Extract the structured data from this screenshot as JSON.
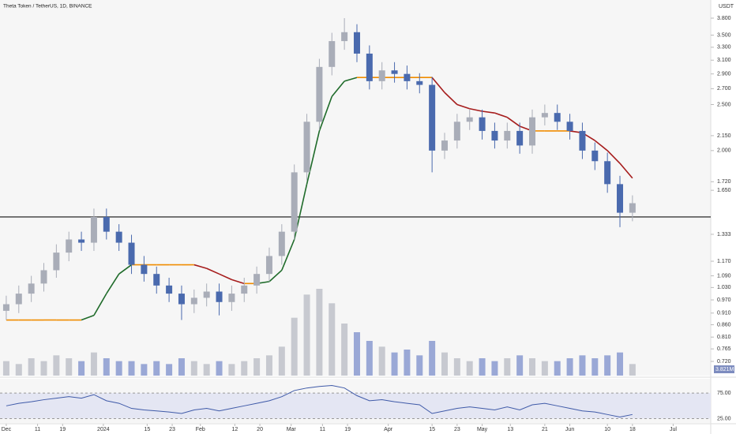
{
  "chart_data": {
    "type": "candlestick",
    "title": "Theta Token / TetherUS, 1D, BINANCE",
    "currency": "USDT",
    "log_scale": true,
    "up_color": "#a9adb8",
    "down_color": "#4a6aae",
    "ma_name": null,
    "x": [
      0,
      4,
      8,
      12,
      16,
      20,
      24,
      28,
      32,
      36,
      40,
      44,
      48,
      52,
      56,
      60,
      64,
      68,
      72,
      76,
      80,
      84,
      88,
      92,
      96,
      100,
      104,
      108,
      112,
      116,
      120,
      124,
      128,
      132,
      136,
      140,
      144,
      148,
      152,
      156,
      160,
      164,
      168,
      172,
      176,
      180,
      184,
      188,
      192,
      196,
      200
    ],
    "open": [
      0.92,
      0.95,
      1.0,
      1.05,
      1.12,
      1.22,
      1.3,
      1.28,
      1.45,
      1.35,
      1.28,
      1.15,
      1.1,
      1.04,
      1.0,
      0.95,
      0.98,
      1.01,
      0.96,
      1.0,
      1.04,
      1.1,
      1.2,
      1.35,
      1.8,
      2.3,
      3.0,
      3.4,
      3.55,
      3.2,
      2.8,
      2.95,
      2.9,
      2.8,
      2.75,
      2.0,
      2.1,
      2.3,
      2.35,
      2.2,
      2.1,
      2.2,
      2.05,
      2.35,
      2.4,
      2.3,
      2.2,
      2.0,
      1.9,
      1.7,
      1.48
    ],
    "high": [
      0.99,
      1.04,
      1.09,
      1.16,
      1.27,
      1.35,
      1.35,
      1.51,
      1.51,
      1.4,
      1.33,
      1.2,
      1.14,
      1.08,
      1.04,
      1.02,
      1.05,
      1.05,
      1.04,
      1.08,
      1.14,
      1.25,
      1.4,
      1.87,
      2.39,
      3.12,
      3.54,
      3.8,
      3.69,
      3.33,
      3.07,
      3.07,
      3.02,
      2.91,
      2.86,
      2.18,
      2.39,
      2.44,
      2.44,
      2.29,
      2.29,
      2.29,
      2.44,
      2.5,
      2.5,
      2.39,
      2.29,
      2.08,
      1.98,
      1.77,
      1.61
    ],
    "low": [
      0.88,
      0.91,
      0.96,
      1.01,
      1.08,
      1.17,
      1.23,
      1.23,
      1.3,
      1.23,
      1.1,
      1.06,
      1.0,
      0.96,
      0.88,
      0.91,
      0.94,
      0.9,
      0.92,
      0.96,
      1.0,
      1.06,
      1.15,
      1.3,
      1.73,
      2.21,
      2.88,
      3.26,
      3.07,
      2.69,
      2.69,
      2.78,
      2.69,
      2.64,
      1.8,
      1.92,
      2.02,
      2.21,
      2.11,
      2.02,
      2.02,
      1.97,
      1.97,
      2.26,
      2.21,
      2.11,
      1.92,
      1.82,
      1.63,
      1.38,
      1.42
    ],
    "close": [
      0.95,
      1.0,
      1.05,
      1.12,
      1.22,
      1.3,
      1.28,
      1.45,
      1.35,
      1.28,
      1.15,
      1.1,
      1.04,
      1.0,
      0.95,
      0.98,
      1.01,
      0.96,
      1.0,
      1.04,
      1.1,
      1.2,
      1.35,
      1.8,
      2.3,
      3.0,
      3.4,
      3.55,
      3.2,
      2.8,
      2.95,
      2.9,
      2.8,
      2.75,
      2.0,
      2.1,
      2.3,
      2.35,
      2.2,
      2.1,
      2.2,
      2.05,
      2.35,
      2.4,
      2.3,
      2.2,
      2.0,
      1.9,
      1.7,
      1.48,
      1.55
    ],
    "ma": [
      0.88,
      0.88,
      0.88,
      0.88,
      0.88,
      0.88,
      0.88,
      0.9,
      1.0,
      1.1,
      1.15,
      1.15,
      1.15,
      1.15,
      1.15,
      1.15,
      1.13,
      1.1,
      1.07,
      1.05,
      1.05,
      1.06,
      1.12,
      1.3,
      1.7,
      2.2,
      2.6,
      2.8,
      2.85,
      2.85,
      2.85,
      2.85,
      2.85,
      2.85,
      2.85,
      2.65,
      2.5,
      2.45,
      2.42,
      2.4,
      2.35,
      2.25,
      2.2,
      2.2,
      2.2,
      2.2,
      2.18,
      2.1,
      2.0,
      1.88,
      1.75
    ],
    "hline": 1.45,
    "volume": [
      5,
      4,
      6,
      5,
      7,
      6,
      5,
      8,
      6,
      5,
      5,
      4,
      5,
      4,
      6,
      5,
      4,
      5,
      4,
      5,
      6,
      7,
      10,
      20,
      28,
      30,
      25,
      18,
      15,
      12,
      10,
      8,
      9,
      7,
      12,
      8,
      6,
      5,
      6,
      5,
      6,
      7,
      6,
      5,
      5,
      6,
      7,
      6,
      7,
      8,
      4
    ],
    "volume_label": "3.821M",
    "rsi": [
      50,
      55,
      58,
      62,
      65,
      68,
      65,
      72,
      60,
      55,
      45,
      42,
      40,
      38,
      35,
      42,
      45,
      40,
      45,
      50,
      55,
      60,
      68,
      80,
      85,
      88,
      90,
      85,
      70,
      60,
      62,
      58,
      55,
      52,
      35,
      40,
      45,
      48,
      45,
      42,
      48,
      42,
      52,
      55,
      50,
      45,
      40,
      38,
      33,
      28,
      33
    ],
    "rsi_ylim": [
      18,
      100
    ],
    "rsi_yticks": [
      {
        "value": 75,
        "label": "75.00"
      },
      {
        "value": 25,
        "label": "25.00"
      }
    ],
    "xlim": [
      -2,
      225
    ],
    "xticks": [
      {
        "value": 0,
        "label": "Dec"
      },
      {
        "value": 10,
        "label": "11"
      },
      {
        "value": 18,
        "label": "19"
      },
      {
        "value": 31,
        "label": "2024"
      },
      {
        "value": 45,
        "label": "15"
      },
      {
        "value": 53,
        "label": "23"
      },
      {
        "value": 62,
        "label": "Feb"
      },
      {
        "value": 73,
        "label": "12"
      },
      {
        "value": 81,
        "label": "20"
      },
      {
        "value": 91,
        "label": "Mar"
      },
      {
        "value": 101,
        "label": "11"
      },
      {
        "value": 109,
        "label": "19"
      },
      {
        "value": 122,
        "label": "Apr"
      },
      {
        "value": 136,
        "label": "15"
      },
      {
        "value": 144,
        "label": "23"
      },
      {
        "value": 152,
        "label": "May"
      },
      {
        "value": 161,
        "label": "13"
      },
      {
        "value": 172,
        "label": "21"
      },
      {
        "value": 180,
        "label": "Jun"
      },
      {
        "value": 192,
        "label": "10"
      },
      {
        "value": 200,
        "label": "18"
      },
      {
        "value": 213,
        "label": "Jul"
      }
    ],
    "ylim": [
      0.72,
      3.8
    ],
    "yticks": [
      {
        "value": 3.8,
        "label": "3.800"
      },
      {
        "value": 3.5,
        "label": "3.500"
      },
      {
        "value": 3.3,
        "label": "3.300"
      },
      {
        "value": 3.1,
        "label": "3.100"
      },
      {
        "value": 2.9,
        "label": "2.900"
      },
      {
        "value": 2.7,
        "label": "2.700"
      },
      {
        "value": 2.5,
        "label": "2.500"
      },
      {
        "value": 2.15,
        "label": "2.150"
      },
      {
        "value": 2,
        "label": "2.000"
      },
      {
        "value": 1.72,
        "label": "1.720"
      },
      {
        "value": 1.65,
        "label": "1.650"
      },
      {
        "value": 1.333,
        "label": "1.333"
      },
      {
        "value": 1.17,
        "label": "1.170"
      },
      {
        "value": 1.09,
        "label": "1.090"
      },
      {
        "value": 1.03,
        "label": "1.030"
      },
      {
        "value": 0.97,
        "label": "0.970"
      },
      {
        "value": 0.91,
        "label": "0.910"
      },
      {
        "value": 0.86,
        "label": "0.860"
      },
      {
        "value": 0.81,
        "label": "0.810"
      },
      {
        "value": 0.765,
        "label": "0.765"
      },
      {
        "value": 0.72,
        "label": "0.720"
      }
    ]
  }
}
